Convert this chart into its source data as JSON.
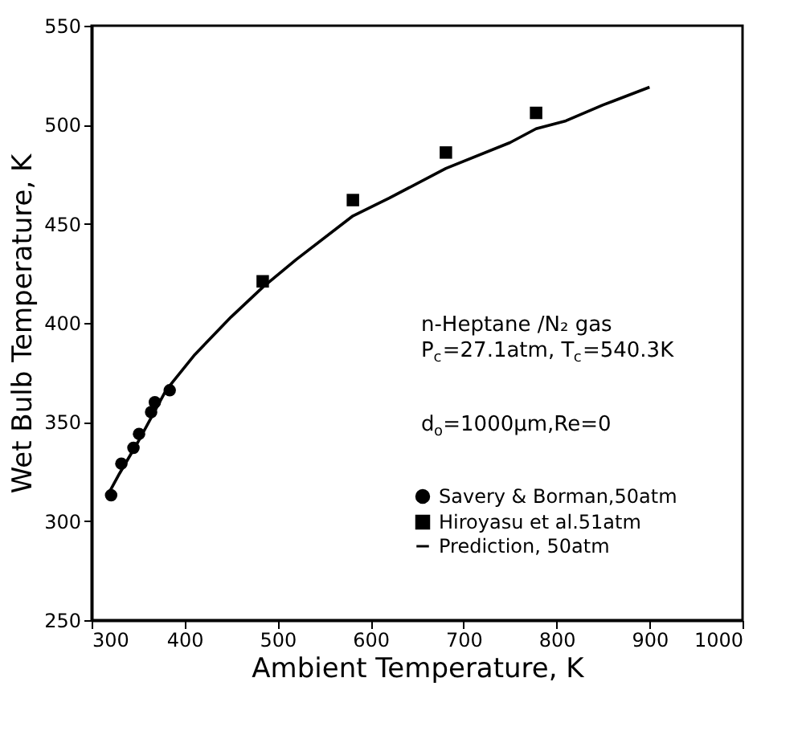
{
  "chart_data": {
    "type": "scatter",
    "xlabel": "Ambient Temperature, K",
    "ylabel": "Wet Bulb Temperature, K",
    "xlim": [
      300,
      1000
    ],
    "xticks": [
      300,
      400,
      500,
      600,
      700,
      800,
      900,
      {
        "value": 1000,
        "label": "1000"
      }
    ],
    "ylim": [
      250,
      550
    ],
    "yticks": [
      250,
      300,
      350,
      400,
      450,
      500,
      550
    ],
    "grid": false,
    "legend": "bottom right",
    "annotations": [
      "n-Heptane /N₂ gas",
      "P$_{c}$=27.1atm, T$_{c}$=540.3K",
      "d$_{o}$=1000μm,Re=0"
    ],
    "series": [
      {
        "name": "Savery & Borman,50atm",
        "marker": "circle",
        "color": "#000000",
        "x": [
          321,
          332,
          345,
          351,
          364,
          368,
          384
        ],
        "values": [
          313,
          329,
          337,
          344,
          355,
          360,
          366
        ]
      },
      {
        "name": "Hiroyasu et al.51atm",
        "marker": "square",
        "color": "#000000",
        "x": [
          484,
          581,
          681,
          778
        ],
        "values": [
          421,
          462,
          486,
          506
        ]
      },
      {
        "name": "Prediction, 50atm",
        "type": "line",
        "line_style": "solid",
        "color": "#000000",
        "x": [
          316,
          330,
          350,
          380,
          411,
          450,
          484,
          520,
          581,
          620,
          681,
          750,
          778,
          810,
          850,
          900
        ],
        "values": [
          312,
          324,
          340,
          366,
          384,
          403,
          418,
          432,
          454,
          463,
          478,
          491,
          498,
          502,
          510,
          519
        ]
      }
    ]
  }
}
